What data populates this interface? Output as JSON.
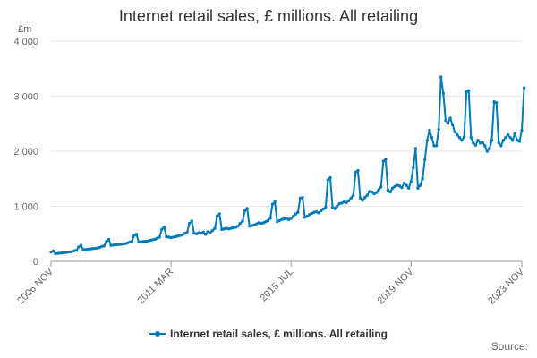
{
  "title": "Internet retail sales, £ millions. All retailing",
  "y_unit": "£m",
  "source_label": "Source:",
  "legend_label": "Internet retail sales, £ millions. All retailing",
  "colors": {
    "series": "#007AB8",
    "grid": "#e6e6e6",
    "axis": "#999999"
  },
  "chart_data": {
    "type": "line",
    "title": "Internet retail sales, £ millions. All retailing",
    "ylabel": "£m",
    "ylim": [
      0,
      4000
    ],
    "y_ticks": [
      0,
      1000,
      2000,
      3000,
      4000
    ],
    "y_tick_labels": [
      "0",
      "1 000",
      "2 000",
      "3 000",
      "4 000"
    ],
    "x_tick_labels": [
      "2006 NOV",
      "2011 MAR",
      "2015 JUL",
      "2019 NOV",
      "2023 NOV"
    ],
    "x_range": [
      "2006 NOV",
      "2023 NOV"
    ],
    "grid": true,
    "legend_position": "bottom",
    "series": [
      {
        "name": "Internet retail sales, £ millions. All retailing",
        "x_start": "2006 NOV",
        "frequency": "monthly",
        "values": [
          170,
          190,
          140,
          145,
          150,
          155,
          160,
          165,
          170,
          175,
          190,
          200,
          260,
          290,
          210,
          215,
          220,
          225,
          230,
          235,
          240,
          250,
          270,
          280,
          360,
          400,
          290,
          295,
          300,
          305,
          310,
          315,
          320,
          330,
          350,
          360,
          470,
          490,
          350,
          355,
          360,
          365,
          370,
          380,
          390,
          400,
          420,
          440,
          580,
          620,
          450,
          440,
          430,
          440,
          450,
          460,
          470,
          480,
          510,
          530,
          690,
          730,
          510,
          500,
          520,
          510,
          530,
          490,
          540,
          520,
          560,
          600,
          820,
          860,
          580,
          590,
          600,
          590,
          600,
          610,
          620,
          640,
          690,
          730,
          920,
          960,
          640,
          650,
          660,
          680,
          700,
          690,
          700,
          720,
          740,
          780,
          1040,
          1080,
          720,
          740,
          760,
          770,
          780,
          760,
          780,
          820,
          860,
          890,
          1150,
          1160,
          800,
          820,
          850,
          870,
          890,
          900,
          880,
          920,
          950,
          980,
          1480,
          1520,
          980,
          960,
          1000,
          1050,
          1060,
          1080,
          1070,
          1100,
          1150,
          1200,
          1620,
          1650,
          1150,
          1110,
          1160,
          1200,
          1270,
          1260,
          1230,
          1250,
          1300,
          1350,
          1820,
          1850,
          1290,
          1260,
          1330,
          1360,
          1380,
          1370,
          1340,
          1420,
          1380,
          1330,
          1450,
          1700,
          2050,
          1330,
          1380,
          1500,
          1850,
          2200,
          2380,
          2250,
          2100,
          2100,
          2400,
          3350,
          3050,
          2560,
          2510,
          2600,
          2480,
          2350,
          2300,
          2250,
          2200,
          2260,
          3080,
          3100,
          2250,
          2150,
          2110,
          2200,
          2150,
          2160,
          2100,
          2000,
          2050,
          2200,
          2900,
          2880,
          2150,
          2100,
          2200,
          2250,
          2300,
          2250,
          2200,
          2320,
          2200,
          2180,
          2380,
          3150
        ]
      }
    ]
  }
}
